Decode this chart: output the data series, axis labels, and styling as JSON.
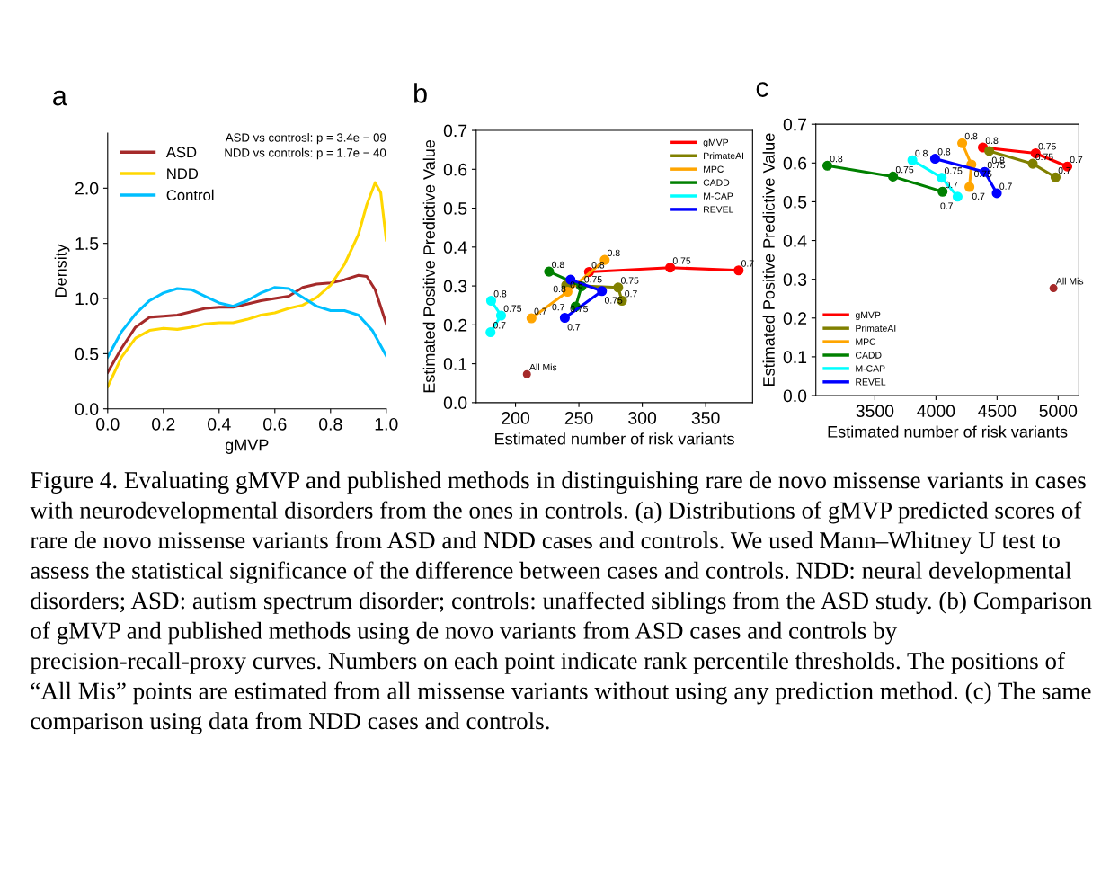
{
  "chart_data": [
    {
      "type": "line",
      "title": "a",
      "xlabel": "gMVP",
      "ylabel": "Density",
      "xlim": [
        0,
        1
      ],
      "ylim": [
        0,
        2.5
      ],
      "xticks": [
        {
          "value": 0,
          "label": "0.0"
        },
        0.2,
        0.4,
        0.6,
        0.8,
        {
          "value": 1,
          "label": "1.0"
        }
      ],
      "yticks": [
        {
          "value": 0,
          "label": "0.0"
        },
        0.5,
        {
          "value": 1,
          "label": "1.0"
        },
        1.5,
        {
          "value": 2,
          "label": "2.0"
        }
      ],
      "legend": "top left",
      "grid": false,
      "marker": "none",
      "line_style": "solid",
      "annotations": [
        "ASD vs controsl: p = 3.4e − 09",
        "NDD vs controls: p = 1.7e − 40"
      ],
      "series": [
        {
          "name": "ASD",
          "color": "#a52a2a",
          "x": [
            0,
            0.05,
            0.1,
            0.15,
            0.2,
            0.25,
            0.3,
            0.35,
            0.4,
            0.45,
            0.5,
            0.55,
            0.6,
            0.65,
            0.7,
            0.75,
            0.8,
            0.85,
            0.9,
            0.93,
            0.96,
            1.0
          ],
          "values": [
            0.33,
            0.55,
            0.74,
            0.83,
            0.84,
            0.85,
            0.88,
            0.91,
            0.92,
            0.92,
            0.95,
            0.98,
            1.0,
            1.02,
            1.1,
            1.13,
            1.14,
            1.17,
            1.21,
            1.2,
            1.08,
            0.77
          ]
        },
        {
          "name": "NDD",
          "color": "#ffd700",
          "x": [
            0,
            0.05,
            0.1,
            0.15,
            0.2,
            0.25,
            0.3,
            0.35,
            0.4,
            0.45,
            0.5,
            0.55,
            0.6,
            0.65,
            0.7,
            0.75,
            0.8,
            0.85,
            0.9,
            0.93,
            0.96,
            0.98,
            1.0
          ],
          "values": [
            0.2,
            0.47,
            0.64,
            0.71,
            0.73,
            0.72,
            0.74,
            0.77,
            0.78,
            0.78,
            0.81,
            0.85,
            0.87,
            0.91,
            0.94,
            1.01,
            1.12,
            1.31,
            1.58,
            1.85,
            2.05,
            1.96,
            1.53
          ]
        },
        {
          "name": "Control",
          "color": "#00bfff",
          "x": [
            0,
            0.05,
            0.1,
            0.15,
            0.2,
            0.25,
            0.3,
            0.35,
            0.4,
            0.45,
            0.5,
            0.55,
            0.6,
            0.65,
            0.7,
            0.75,
            0.8,
            0.85,
            0.9,
            0.95,
            1.0
          ],
          "values": [
            0.47,
            0.7,
            0.86,
            0.98,
            1.05,
            1.09,
            1.08,
            1.02,
            0.96,
            0.93,
            0.98,
            1.05,
            1.1,
            1.09,
            1.01,
            0.93,
            0.89,
            0.89,
            0.85,
            0.71,
            0.48
          ]
        }
      ]
    },
    {
      "type": "line",
      "title": "b",
      "xlabel": "Estimated number of risk variants",
      "ylabel": "Estimated Positive Predictive Value",
      "xlim": [
        169,
        387
      ],
      "ylim": [
        0,
        0.7
      ],
      "xticks": [
        200,
        250,
        300,
        350
      ],
      "yticks": [
        {
          "value": 0,
          "label": "0.0"
        },
        0.1,
        0.2,
        0.3,
        0.4,
        0.5,
        0.6,
        0.7
      ],
      "legend": "top right",
      "grid": false,
      "marker": "circle",
      "line_style": "solid",
      "annotations": [
        {
          "text": "0.8",
          "x": 258,
          "y": 0.336
        },
        {
          "text": "0.75",
          "x": 322,
          "y": 0.347
        },
        {
          "text": "0.7",
          "x": 376,
          "y": 0.34
        },
        {
          "text": "0.75",
          "x": 281,
          "y": 0.296
        },
        {
          "text": "0.7",
          "x": 284,
          "y": 0.262
        },
        {
          "text": "0.8",
          "x": 270.4,
          "y": 0.367
        },
        {
          "text": "0.8",
          "x": 241,
          "y": 0.285
        },
        {
          "text": "0.7",
          "x": 212.6,
          "y": 0.217
        },
        {
          "text": "0.8",
          "x": 226.5,
          "y": 0.337
        },
        {
          "text": "0.75",
          "x": 252.1,
          "y": 0.299
        },
        {
          "text": "0.75",
          "x": 241,
          "y": 0.265
        },
        {
          "text": "0.7",
          "x": 247.4,
          "y": 0.247
        },
        {
          "text": "0.8",
          "x": 180.8,
          "y": 0.262
        },
        {
          "text": "0.75",
          "x": 188.6,
          "y": 0.224
        },
        {
          "text": "0.7",
          "x": 180.3,
          "y": 0.181
        },
        {
          "text": "0.8",
          "x": 243.4,
          "y": 0.316
        },
        {
          "text": "0.75",
          "x": 268.2,
          "y": 0.287
        },
        {
          "text": "0.7",
          "x": 238.9,
          "y": 0.218
        },
        {
          "text": "All Mis",
          "x": 209,
          "y": 0.073
        }
      ],
      "series": [
        {
          "name": "gMVP",
          "color": "#ff0000",
          "x": [
            258,
            322,
            376
          ],
          "values": [
            0.336,
            0.347,
            0.34
          ]
        },
        {
          "name": "PrimateAI",
          "color": "#808000",
          "x": [
            240,
            281,
            284
          ],
          "values": [
            0.302,
            0.296,
            0.262
          ]
        },
        {
          "name": "MPC",
          "color": "#ffa500",
          "x": [
            270.4,
            241,
            212.6
          ],
          "values": [
            0.367,
            0.285,
            0.217
          ]
        },
        {
          "name": "CADD",
          "color": "#008000",
          "x": [
            226.5,
            252.1,
            247.4
          ],
          "values": [
            0.337,
            0.299,
            0.247
          ]
        },
        {
          "name": "M-CAP",
          "color": "#00ffff",
          "x": [
            180.8,
            188.6,
            180.3
          ],
          "values": [
            0.262,
            0.224,
            0.181
          ]
        },
        {
          "name": "REVEL",
          "color": "#0000ff",
          "x": [
            243.4,
            268.2,
            238.9
          ],
          "values": [
            0.316,
            0.287,
            0.218
          ]
        },
        {
          "type": "scatter",
          "color": "#a52a2a",
          "x": [
            209
          ],
          "values": [
            0.073
          ]
        }
      ]
    },
    {
      "type": "line",
      "title": "c",
      "xlabel": "Estimated number of risk variants",
      "ylabel": "Estimated Positive Predictive Value",
      "xlim": [
        3017,
        5170
      ],
      "ylim": [
        0,
        0.7
      ],
      "xticks": [
        3500,
        4000,
        4500,
        5000
      ],
      "yticks": [
        {
          "value": 0,
          "label": "0.0"
        },
        0.1,
        0.2,
        0.3,
        0.4,
        0.5,
        0.6,
        0.7
      ],
      "legend": "bottom left",
      "grid": false,
      "marker": "circle",
      "line_style": "solid",
      "annotations": [
        {
          "text": "0.8",
          "x": 4384,
          "y": 0.64
        },
        {
          "text": "0.75",
          "x": 4816,
          "y": 0.625
        },
        {
          "text": "0.7",
          "x": 5075,
          "y": 0.591
        },
        {
          "text": "0.8",
          "x": 4436,
          "y": 0.631
        },
        {
          "text": "0.75",
          "x": 4792,
          "y": 0.598
        },
        {
          "text": "0.7",
          "x": 4979,
          "y": 0.563
        },
        {
          "text": "0.8",
          "x": 4215,
          "y": 0.651
        },
        {
          "text": "0.75",
          "x": 4290,
          "y": 0.596
        },
        {
          "text": "0.7",
          "x": 4274,
          "y": 0.538
        },
        {
          "text": "0.8",
          "x": 3111,
          "y": 0.593
        },
        {
          "text": "0.75",
          "x": 3649,
          "y": 0.565
        },
        {
          "text": "0.7",
          "x": 4054,
          "y": 0.526
        },
        {
          "text": "0.8",
          "x": 3807,
          "y": 0.607
        },
        {
          "text": "0.75",
          "x": 4047,
          "y": 0.562
        },
        {
          "text": "0.7",
          "x": 4177,
          "y": 0.513
        },
        {
          "text": "0.8",
          "x": 3993,
          "y": 0.611
        },
        {
          "text": "0.75",
          "x": 4399,
          "y": 0.577
        },
        {
          "text": "0.7",
          "x": 4498,
          "y": 0.522
        },
        {
          "text": "All Mis",
          "x": 4962,
          "y": 0.277
        },
        "Figure 4. Evaluating gMVP and published methods in distinguishing rare de novo missense variants in cases with neurodevelopmental disorders from the ones in controls. (a) Distributions of gMVP predicted scores of rare de novo missense variants from ASD and NDD cases and controls. We used Mann–Whitney U test to assess the statistical significance of the difference between cases and controls. NDD: neural developmental disorders; ASD: autism spectrum disorder; controls: unaffected siblings from the ASD study. (b) Comparison of gMVP and published methods using de novo variants from ASD cases and controls by precision-recall-proxy curves. Numbers on each point indicate rank percentile thresholds. The positions of “All Mis” points are estimated from all missense variants without using any prediction method. (c) The same comparison using data from NDD cases and controls."
      ],
      "series": [
        {
          "name": "gMVP",
          "color": "#ff0000",
          "x": [
            4384,
            4816,
            5075
          ],
          "values": [
            0.64,
            0.625,
            0.591
          ]
        },
        {
          "name": "PrimateAI",
          "color": "#808000",
          "x": [
            4436,
            4792,
            4979
          ],
          "values": [
            0.631,
            0.598,
            0.563
          ]
        },
        {
          "name": "MPC",
          "color": "#ffa500",
          "x": [
            4215,
            4290,
            4274
          ],
          "values": [
            0.651,
            0.596,
            0.538
          ]
        },
        {
          "name": "CADD",
          "color": "#008000",
          "x": [
            3111,
            3649,
            4054
          ],
          "values": [
            0.593,
            0.565,
            0.526
          ]
        },
        {
          "name": "M-CAP",
          "color": "#00ffff",
          "x": [
            3807,
            4047,
            4177
          ],
          "values": [
            0.607,
            0.562,
            0.513
          ]
        },
        {
          "name": "REVEL",
          "color": "#0000ff",
          "x": [
            3993,
            4399,
            4498
          ],
          "values": [
            0.611,
            0.577,
            0.522
          ]
        },
        {
          "type": "scatter",
          "color": "#a52a2a",
          "x": [
            4962
          ],
          "values": [
            0.277
          ]
        }
      ]
    }
  ]
}
